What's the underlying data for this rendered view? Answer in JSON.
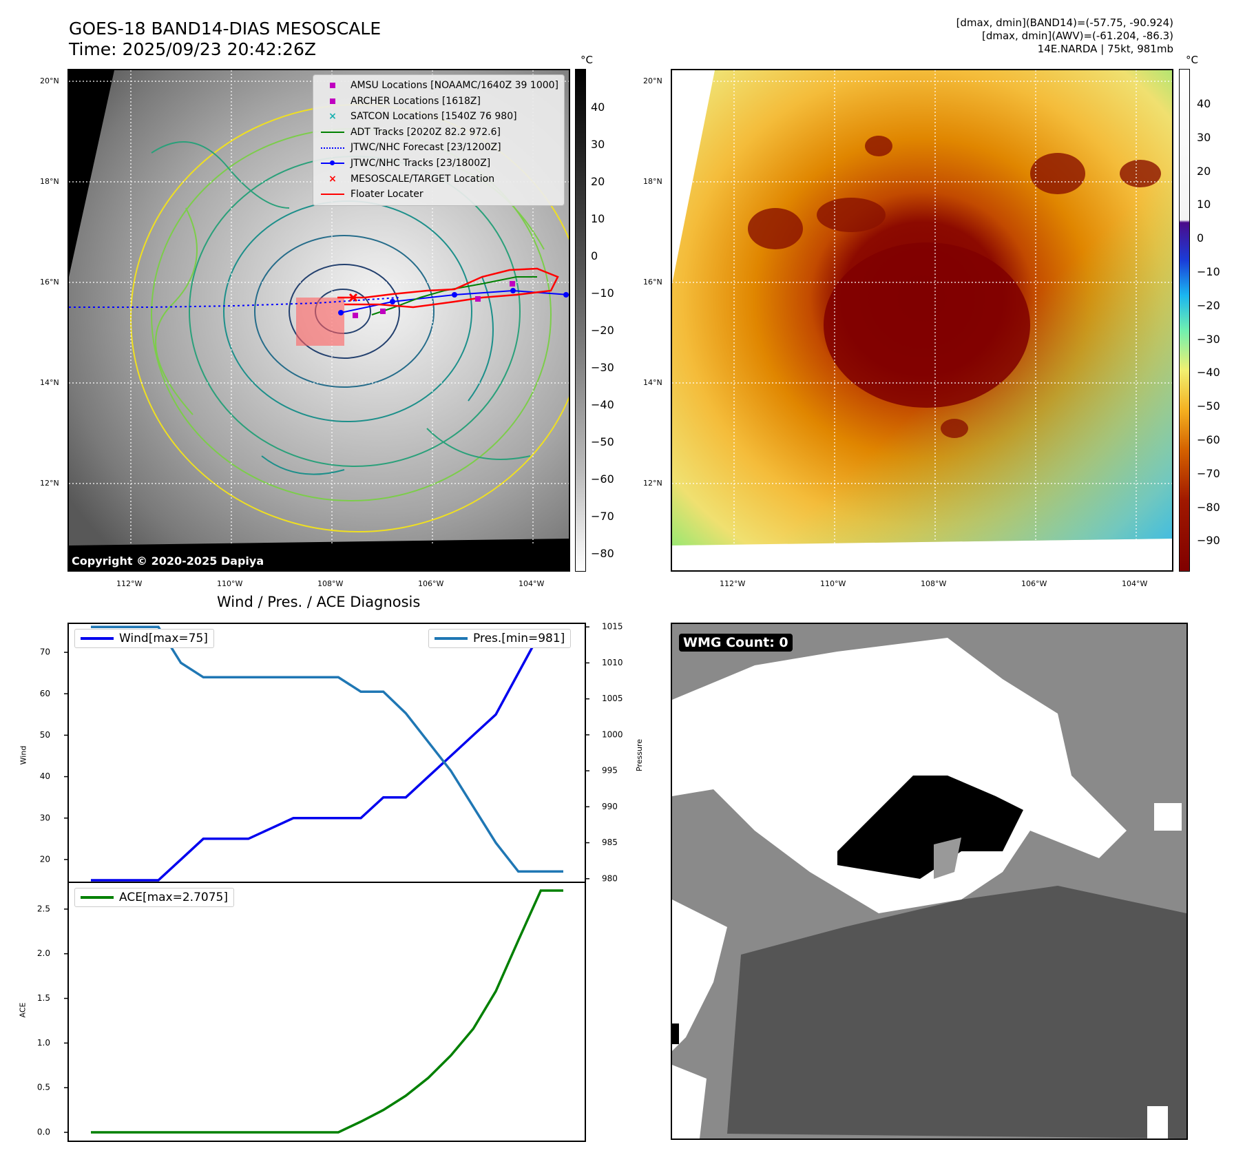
{
  "header": {
    "title_line1": "GOES-18 BAND14-DIAS MESOSCALE",
    "title_line2": "Time: 2025/09/23 20:42:26Z",
    "info_line1": "[dmax, dmin](BAND14)=(-57.75, -90.924)",
    "info_line2": "[dmax, dmin](AWV)=(-61.204, -86.3)",
    "info_line3": "14E.NARDA | 75kt, 981mb"
  },
  "map_panel": {
    "lat_labels": [
      "20°N",
      "18°N",
      "16°N",
      "14°N",
      "12°N"
    ],
    "lon_labels": [
      "112°W",
      "110°W",
      "108°W",
      "106°W",
      "104°W"
    ],
    "colorbar_unit": "°C",
    "colorbar_ticks": [
      "40",
      "30",
      "20",
      "10",
      "0",
      "−10",
      "−20",
      "−30",
      "−40",
      "−50",
      "−60",
      "−70",
      "−80"
    ],
    "copyright": "Copyright © 2020-2025 Dapiya",
    "legend": [
      {
        "label": "AMSU Locations [NOAAMC/1640Z 39 1000]",
        "symbol": "square",
        "color": "#c000c0"
      },
      {
        "label": "ARCHER Locations [1618Z]",
        "symbol": "square",
        "color": "#c000c0"
      },
      {
        "label": "SATCON Locations [1540Z 76 980]",
        "symbol": "x",
        "color": "#17b0b0"
      },
      {
        "label": "ADT Tracks [2020Z 82.2 972.6]",
        "symbol": "line",
        "color": "#008000"
      },
      {
        "label": "JTWC/NHC Forecast [23/1200Z]",
        "symbol": "dotted",
        "color": "#0000ff"
      },
      {
        "label": "JTWC/NHC Tracks [23/1800Z]",
        "symbol": "line-dot",
        "color": "#0000ff"
      },
      {
        "label": "MESOSCALE/TARGET Location",
        "symbol": "x",
        "color": "#ff0000"
      },
      {
        "label": "Floater Locater",
        "symbol": "line",
        "color": "#ff0000"
      }
    ]
  },
  "awv_panel": {
    "lat_labels": [
      "20°N",
      "18°N",
      "16°N",
      "14°N",
      "12°N"
    ],
    "lon_labels": [
      "112°W",
      "110°W",
      "108°W",
      "106°W",
      "104°W"
    ],
    "colorbar_unit": "°C",
    "colorbar_ticks": [
      "40",
      "30",
      "20",
      "10",
      "0",
      "−10",
      "−20",
      "−30",
      "−40",
      "−50",
      "−60",
      "−70",
      "−80",
      "−90"
    ]
  },
  "chart_data": {
    "type": "line",
    "title": "Wind / Pres. / ACE Diagnosis",
    "x": [
      0,
      1,
      2,
      3,
      4,
      5,
      6,
      7,
      8,
      9,
      10,
      11,
      12,
      13,
      14,
      15,
      16,
      17,
      18,
      19,
      20,
      21
    ],
    "series": [
      {
        "name": "Wind[max=75]",
        "axis": "Wind",
        "color": "#0000ee",
        "values": [
          15,
          15,
          15,
          15,
          20,
          25,
          25,
          25,
          27.5,
          30,
          30,
          30,
          30,
          35,
          35,
          40,
          45,
          50,
          55,
          65,
          75,
          75
        ]
      },
      {
        "name": "Pres.[min=981]",
        "axis": "Pressure",
        "color": "#1f77b4",
        "values": [
          1015,
          1015,
          1015,
          1015,
          1010,
          1008,
          1008,
          1008,
          1008,
          1008,
          1008,
          1008,
          1006,
          1006,
          1003,
          999,
          995,
          990,
          985,
          981,
          981,
          981
        ]
      },
      {
        "name": "ACE[max=2.7075]",
        "axis": "ACE",
        "color": "#008000",
        "values": [
          0,
          0,
          0,
          0,
          0,
          0,
          0,
          0,
          0,
          0,
          0,
          0,
          0.12,
          0.25,
          0.41,
          0.61,
          0.86,
          1.16,
          1.58,
          2.15,
          2.7075,
          2.7075
        ]
      }
    ],
    "wind_axis": {
      "label": "Wind",
      "ticks": [
        "70",
        "60",
        "50",
        "40",
        "30",
        "20"
      ],
      "ylim": [
        14.5,
        77
      ]
    },
    "pressure_axis": {
      "label": "Pressure",
      "ticks": [
        "1015",
        "1010",
        "1005",
        "1000",
        "995",
        "990",
        "985",
        "980"
      ],
      "ylim": [
        979.5,
        1015.5
      ]
    },
    "ace_axis": {
      "label": "ACE",
      "ticks": [
        "2.5",
        "2.0",
        "1.5",
        "1.0",
        "0.5",
        "0.0"
      ],
      "ylim": [
        -0.1,
        2.8
      ]
    }
  },
  "wmg_panel": {
    "badge": "WMG Count: 0"
  }
}
